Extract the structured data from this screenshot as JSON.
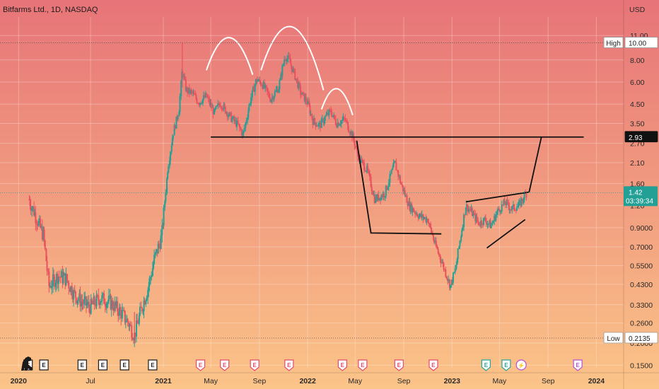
{
  "chart_data": {
    "type": "candlestick",
    "title": "Bitfarms Ltd., 1D, NASDAQ",
    "currency": "USD",
    "yscale": "log",
    "ylim": [
      0.145,
      13.5
    ],
    "xlim": [
      "2019-11-15",
      "2024-03-10"
    ],
    "y_ticks": [
      "11.00",
      "8.00",
      "6.00",
      "4.50",
      "3.50",
      "2.70",
      "2.10",
      "1.60",
      "1.20",
      "0.9000",
      "0.7000",
      "0.5500",
      "0.4300",
      "0.3300",
      "0.2600",
      "0.2000",
      "0.1500"
    ],
    "x_ticks": [
      {
        "label": "2020",
        "date": "2020-01-01",
        "bold": true
      },
      {
        "label": "Jul",
        "date": "2020-07-01",
        "bold": false
      },
      {
        "label": "2021",
        "date": "2021-01-01",
        "bold": true
      },
      {
        "label": "May",
        "date": "2021-05-01",
        "bold": false
      },
      {
        "label": "Sep",
        "date": "2021-09-01",
        "bold": false
      },
      {
        "label": "2022",
        "date": "2022-01-01",
        "bold": true
      },
      {
        "label": "May",
        "date": "2022-05-01",
        "bold": false
      },
      {
        "label": "Sep",
        "date": "2022-09-01",
        "bold": false
      },
      {
        "label": "2023",
        "date": "2023-01-01",
        "bold": true
      },
      {
        "label": "May",
        "date": "2023-05-01",
        "bold": false
      },
      {
        "label": "Sep",
        "date": "2023-09-01",
        "bold": false
      },
      {
        "label": "2024",
        "date": "2024-01-01",
        "bold": true
      }
    ],
    "price_path": [
      [
        "2020-01-28",
        1.3
      ],
      [
        "2020-02-10",
        1.1
      ],
      [
        "2020-03-05",
        0.8
      ],
      [
        "2020-03-18",
        0.42
      ],
      [
        "2020-04-10",
        0.48
      ],
      [
        "2020-05-01",
        0.46
      ],
      [
        "2020-05-20",
        0.38
      ],
      [
        "2020-06-10",
        0.34
      ],
      [
        "2020-07-01",
        0.32
      ],
      [
        "2020-07-25",
        0.36
      ],
      [
        "2020-08-20",
        0.34
      ],
      [
        "2020-09-15",
        0.3
      ],
      [
        "2020-10-05",
        0.26
      ],
      [
        "2020-10-20",
        0.22
      ],
      [
        "2020-11-05",
        0.3
      ],
      [
        "2020-11-25",
        0.42
      ],
      [
        "2020-12-10",
        0.6
      ],
      [
        "2020-12-28",
        0.8
      ],
      [
        "2021-01-12",
        1.9
      ],
      [
        "2021-01-25",
        3.0
      ],
      [
        "2021-02-10",
        4.2
      ],
      [
        "2021-02-18",
        7.0
      ],
      [
        "2021-02-28",
        5.4
      ],
      [
        "2021-03-15",
        5.2
      ],
      [
        "2021-04-01",
        4.6
      ],
      [
        "2021-04-20",
        5.0
      ],
      [
        "2021-05-10",
        4.0
      ],
      [
        "2021-05-25",
        4.6
      ],
      [
        "2021-06-20",
        3.8
      ],
      [
        "2021-07-10",
        3.4
      ],
      [
        "2021-07-22",
        3.0
      ],
      [
        "2021-08-10",
        4.8
      ],
      [
        "2021-08-25",
        6.2
      ],
      [
        "2021-09-10",
        5.8
      ],
      [
        "2021-09-30",
        4.8
      ],
      [
        "2021-10-20",
        5.6
      ],
      [
        "2021-11-05",
        8.4
      ],
      [
        "2021-11-15",
        8.0
      ],
      [
        "2021-11-30",
        6.5
      ],
      [
        "2021-12-15",
        5.2
      ],
      [
        "2022-01-01",
        4.6
      ],
      [
        "2022-01-15",
        3.6
      ],
      [
        "2022-02-01",
        3.4
      ],
      [
        "2022-02-15",
        3.8
      ],
      [
        "2022-03-01",
        4.1
      ],
      [
        "2022-03-15",
        3.5
      ],
      [
        "2022-04-05",
        3.7
      ],
      [
        "2022-04-25",
        2.95
      ],
      [
        "2022-05-12",
        2.2
      ],
      [
        "2022-06-01",
        1.9
      ],
      [
        "2022-06-20",
        1.3
      ],
      [
        "2022-07-15",
        1.4
      ],
      [
        "2022-08-10",
        2.1
      ],
      [
        "2022-08-25",
        1.6
      ],
      [
        "2022-09-15",
        1.2
      ],
      [
        "2022-10-10",
        1.05
      ],
      [
        "2022-11-01",
        1.0
      ],
      [
        "2022-11-20",
        0.72
      ],
      [
        "2022-12-10",
        0.55
      ],
      [
        "2022-12-28",
        0.42
      ],
      [
        "2023-01-10",
        0.52
      ],
      [
        "2023-01-25",
        0.85
      ],
      [
        "2023-02-05",
        1.2
      ],
      [
        "2023-02-20",
        1.1
      ],
      [
        "2023-03-10",
        0.95
      ],
      [
        "2023-03-25",
        1.0
      ],
      [
        "2023-04-10",
        0.92
      ],
      [
        "2023-04-25",
        1.1
      ],
      [
        "2023-05-15",
        1.25
      ],
      [
        "2023-06-01",
        1.15
      ],
      [
        "2023-06-20",
        1.2
      ],
      [
        "2023-07-05",
        1.38
      ],
      [
        "2023-07-10",
        1.42
      ]
    ],
    "annotations": {
      "arcs": [
        {
          "start": [
            "2021-04-20",
            7.0
          ],
          "end": [
            "2021-08-15",
            6.6
          ],
          "peak_price": 10.7
        },
        {
          "start": [
            "2021-09-05",
            7.0
          ],
          "end": [
            "2022-02-10",
            5.4
          ],
          "peak_price": 12.3
        },
        {
          "start": [
            "2022-02-05",
            4.2
          ],
          "end": [
            "2022-04-25",
            3.9
          ],
          "peak_price": 5.5
        }
      ],
      "polylines": [
        [
          [
            "2021-05-01",
            2.93
          ],
          [
            "2023-11-30",
            2.93
          ]
        ],
        [
          [
            "2022-05-05",
            2.8
          ],
          [
            "2022-06-10",
            0.84
          ],
          [
            "2022-12-05",
            0.83
          ]
        ],
        [
          [
            "2023-07-15",
            1.43
          ],
          [
            "2023-08-15",
            2.93
          ]
        ],
        [
          [
            "2023-02-05",
            1.26
          ],
          [
            "2023-07-15",
            1.43
          ]
        ],
        [
          [
            "2023-03-30",
            0.69
          ],
          [
            "2023-07-05",
            1.0
          ]
        ]
      ]
    },
    "high": {
      "label": "High",
      "value": "10.00"
    },
    "low": {
      "label": "Low",
      "value": "0.2135"
    },
    "level": {
      "value": "2.93"
    },
    "current": {
      "price": "1.42",
      "countdown": "03:39:34"
    },
    "events": [
      {
        "label": "E",
        "date": "2020-01-25",
        "kind": "earnings-past"
      },
      {
        "label": "E",
        "date": "2020-03-05",
        "kind": "earnings-past"
      },
      {
        "label": "E",
        "date": "2020-06-10",
        "kind": "earnings-past"
      },
      {
        "label": "E",
        "date": "2020-08-01",
        "kind": "earnings-past"
      },
      {
        "label": "E",
        "date": "2020-09-25",
        "kind": "earnings-past"
      },
      {
        "label": "E",
        "date": "2020-12-05",
        "kind": "earnings-past"
      },
      {
        "label": "E",
        "date": "2021-04-05",
        "kind": "earnings-recent"
      },
      {
        "label": "E",
        "date": "2021-06-05",
        "kind": "earnings-recent"
      },
      {
        "label": "E",
        "date": "2021-08-20",
        "kind": "earnings-recent"
      },
      {
        "label": "E",
        "date": "2021-11-15",
        "kind": "earnings-recent"
      },
      {
        "label": "E",
        "date": "2022-03-30",
        "kind": "earnings-recent"
      },
      {
        "label": "E",
        "date": "2022-05-20",
        "kind": "earnings-recent"
      },
      {
        "label": "E",
        "date": "2022-08-20",
        "kind": "earnings-recent"
      },
      {
        "label": "E",
        "date": "2022-11-15",
        "kind": "earnings-recent"
      },
      {
        "label": "E",
        "date": "2023-03-28",
        "kind": "earnings-latest"
      },
      {
        "label": "E",
        "date": "2023-05-18",
        "kind": "earnings-latest"
      },
      {
        "label": "⚡",
        "date": "2023-06-25",
        "kind": "split"
      },
      {
        "label": "E",
        "date": "2023-11-15",
        "kind": "earnings-future"
      }
    ],
    "colors": {
      "bg_top": "#e77478",
      "bg_bottom": "#fbc488",
      "up": "#22a096",
      "down": "#e8515e",
      "annotation": "#111111",
      "arc": "#ffffff",
      "current_badge": "#22a096",
      "level_badge": "#111111",
      "earnings_past": "#1c1c1c",
      "earnings_recent": "#e34a6b",
      "earnings_latest": "#26a69a",
      "split": "#b84fd1",
      "earnings_future": "#b84fd1"
    }
  }
}
